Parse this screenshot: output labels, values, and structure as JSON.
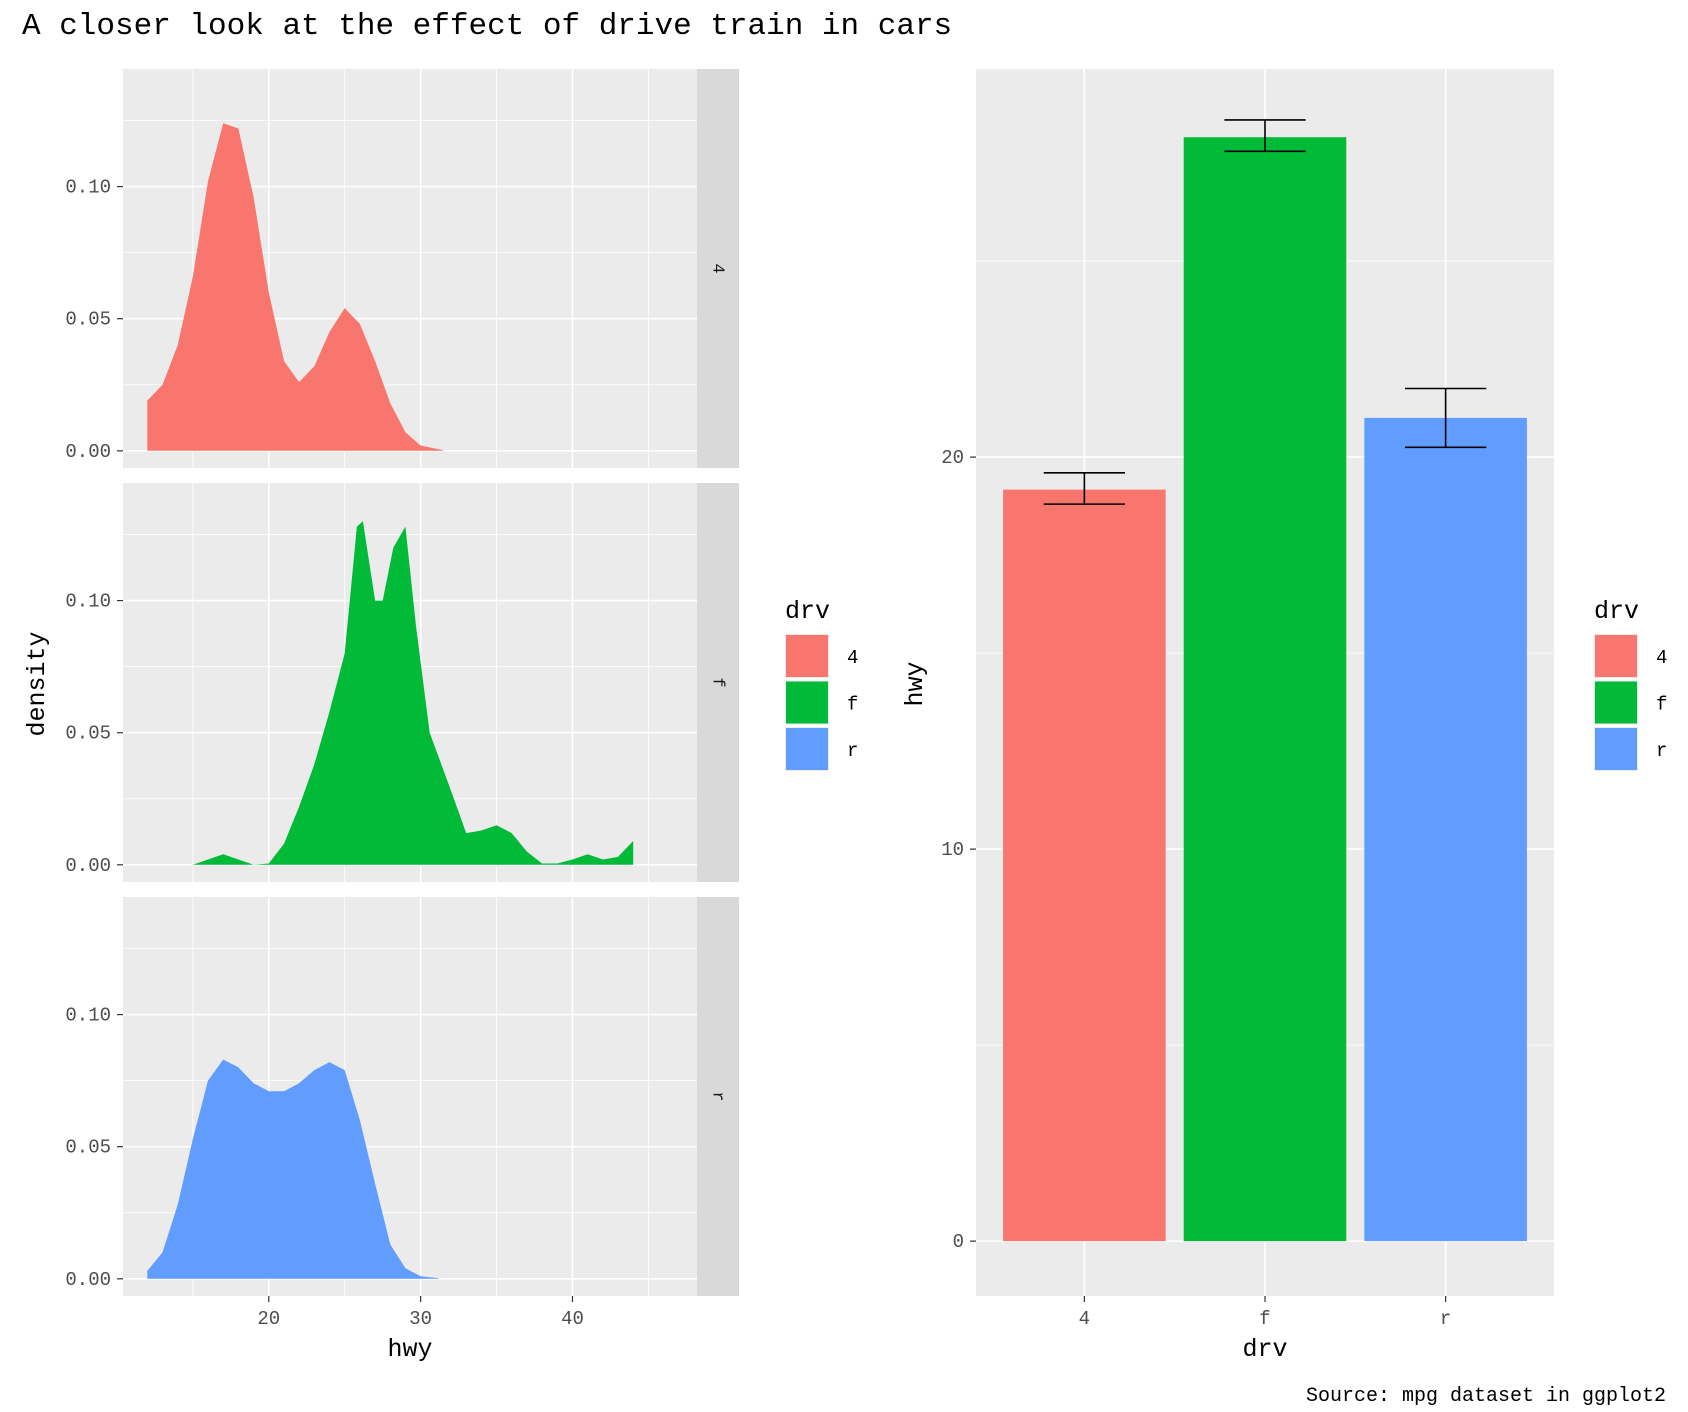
{
  "title": "A closer look at the effect of drive train in cars",
  "caption": "Source: mpg dataset in ggplot2",
  "colors": {
    "4": "#F8766D",
    "f": "#00BA38",
    "r": "#619CFF",
    "panel_bg": "#EBEBEB",
    "strip_bg": "#D9D9D9",
    "grid": "#FFFFFF"
  },
  "legends": [
    {
      "title": "drv",
      "items": [
        "4",
        "f",
        "r"
      ]
    },
    {
      "title": "drv",
      "items": [
        "4",
        "f",
        "r"
      ]
    }
  ],
  "chart_data": [
    {
      "type": "area",
      "facet_by": "drv",
      "facets": [
        "4",
        "f",
        "r"
      ],
      "xlabel": "hwy",
      "ylabel": "density",
      "xlim": [
        10.4,
        48.2
      ],
      "ylim": [
        -0.0065,
        0.1445
      ],
      "xticks": [
        20,
        30,
        40
      ],
      "yticks": [
        0.0,
        0.05,
        0.1
      ],
      "ytick_labels": [
        "0.00",
        "0.05",
        "0.10"
      ],
      "series": [
        {
          "name": "4",
          "points": [
            [
              12,
              0.019
            ],
            [
              13,
              0.025
            ],
            [
              14,
              0.04
            ],
            [
              15,
              0.066
            ],
            [
              16,
              0.102
            ],
            [
              17,
              0.124
            ],
            [
              18,
              0.122
            ],
            [
              19,
              0.096
            ],
            [
              20,
              0.06
            ],
            [
              21,
              0.034
            ],
            [
              22,
              0.026
            ],
            [
              23,
              0.032
            ],
            [
              24,
              0.045
            ],
            [
              25,
              0.054
            ],
            [
              26,
              0.048
            ],
            [
              27,
              0.034
            ],
            [
              28,
              0.018
            ],
            [
              29,
              0.007
            ],
            [
              30,
              0.002
            ],
            [
              31.5,
              0.0002
            ]
          ]
        },
        {
          "name": "f",
          "points": [
            [
              15,
              0.0
            ],
            [
              16,
              0.002
            ],
            [
              17,
              0.004
            ],
            [
              18,
              0.002
            ],
            [
              19,
              0.0
            ],
            [
              20,
              0.0005
            ],
            [
              21,
              0.008
            ],
            [
              22,
              0.022
            ],
            [
              23,
              0.038
            ],
            [
              24,
              0.058
            ],
            [
              25,
              0.08
            ],
            [
              25.8,
              0.128
            ],
            [
              26.2,
              0.13
            ],
            [
              27,
              0.1
            ],
            [
              27.5,
              0.1
            ],
            [
              28.2,
              0.12
            ],
            [
              29,
              0.128
            ],
            [
              29.7,
              0.09
            ],
            [
              30.6,
              0.05
            ],
            [
              32,
              0.028
            ],
            [
              33,
              0.012
            ],
            [
              34,
              0.013
            ],
            [
              35,
              0.015
            ],
            [
              36,
              0.012
            ],
            [
              37,
              0.005
            ],
            [
              38,
              0.0005
            ],
            [
              39,
              0.0005
            ],
            [
              40,
              0.002
            ],
            [
              41,
              0.004
            ],
            [
              42,
              0.002
            ],
            [
              43,
              0.003
            ],
            [
              44,
              0.009
            ]
          ]
        },
        {
          "name": "r",
          "points": [
            [
              12,
              0.003
            ],
            [
              13,
              0.01
            ],
            [
              14,
              0.028
            ],
            [
              15,
              0.053
            ],
            [
              16,
              0.075
            ],
            [
              17,
              0.083
            ],
            [
              18,
              0.08
            ],
            [
              19,
              0.074
            ],
            [
              20,
              0.071
            ],
            [
              21,
              0.071
            ],
            [
              22,
              0.074
            ],
            [
              23,
              0.079
            ],
            [
              24,
              0.082
            ],
            [
              25,
              0.079
            ],
            [
              26,
              0.06
            ],
            [
              27,
              0.036
            ],
            [
              28,
              0.013
            ],
            [
              29,
              0.004
            ],
            [
              30,
              0.001
            ],
            [
              31.2,
              0.0002
            ]
          ]
        }
      ]
    },
    {
      "type": "bar",
      "categories": [
        "4",
        "f",
        "r"
      ],
      "values": [
        19.17,
        28.16,
        21.0
      ],
      "error_bars": [
        [
          18.8,
          19.6
        ],
        [
          27.8,
          28.6
        ],
        [
          20.25,
          21.75
        ]
      ],
      "xlabel": "drv",
      "ylabel": "hwy",
      "ylim": [
        -1.4,
        29.9
      ],
      "yticks": [
        0,
        10,
        20
      ],
      "ytick_labels": [
        "0",
        "10",
        "20"
      ]
    }
  ]
}
